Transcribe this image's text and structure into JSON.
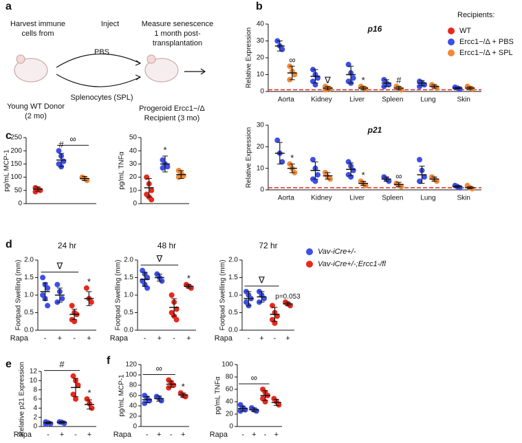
{
  "panels": {
    "a": "a",
    "b": "b",
    "c": "c",
    "d": "d",
    "e": "e",
    "f": "f"
  },
  "diagram": {
    "harvest": [
      "Harvest immune",
      "cells from"
    ],
    "inject": "Inject",
    "measure": [
      "Measure senescence",
      "1 month post-",
      "transplantation"
    ],
    "pbs": "PBS",
    "spl": "Splenocytes (SPL)",
    "donor": [
      "Young WT Donor",
      "(2 mo)"
    ],
    "recipient": [
      "Progeroid Ercc1−/Δ",
      "Recipient (3 mo)"
    ]
  },
  "legends": {
    "b": {
      "title": "Recipients:",
      "items": [
        {
          "name": "WT",
          "color": "#e8291c"
        },
        {
          "name": "Ercc1−/Δ + PBS",
          "color": "#3d4fe6"
        },
        {
          "name": "Ercc1−/Δ + SPL",
          "color": "#f08a3a"
        }
      ]
    },
    "d": {
      "items": [
        {
          "name": "Vav-iCre+/-",
          "color": "#3d4fe6"
        },
        {
          "name": "Vav-iCre+/-;Ercc1-/fl",
          "color": "#e8291c"
        }
      ]
    }
  },
  "chart_data": [
    {
      "type": "dot",
      "title": "p16",
      "ylabel": "Relative Expression",
      "ylim": [
        0,
        40
      ],
      "yticks": [
        0,
        10,
        20,
        30,
        40
      ],
      "reference": 1,
      "reference_color": "#e8291c",
      "categories": [
        "Aorta",
        "Kidney",
        "Liver",
        "Spleen",
        "Lung",
        "Skin"
      ],
      "groups": [
        {
          "color": "#3d4fe6",
          "points": [
            30,
            27,
            25
          ],
          "mean": 27,
          "sd": 3
        },
        {
          "color": "#f08a3a",
          "points": [
            15,
            12,
            10,
            7
          ],
          "mean": 11,
          "sd": 4,
          "annotation": "∞"
        },
        {
          "color": "#3d4fe6",
          "points": [
            13,
            10,
            8,
            6,
            4
          ],
          "mean": 9,
          "sd": 4
        },
        {
          "color": "#f08a3a",
          "points": [
            3,
            2,
            1.5,
            1
          ],
          "mean": 2,
          "sd": 1,
          "annotation": "∇"
        },
        {
          "color": "#3d4fe6",
          "points": [
            16,
            11,
            8,
            6,
            5
          ],
          "mean": 10,
          "sd": 5
        },
        {
          "color": "#f08a3a",
          "points": [
            3,
            2,
            1.5
          ],
          "mean": 2,
          "sd": 1,
          "annotation": "*"
        },
        {
          "color": "#3d4fe6",
          "points": [
            7,
            5,
            4,
            3
          ],
          "mean": 5,
          "sd": 2
        },
        {
          "color": "#f08a3a",
          "points": [
            3,
            2,
            1
          ],
          "mean": 2,
          "sd": 1,
          "annotation": "#"
        },
        {
          "color": "#3d4fe6",
          "points": [
            6,
            5,
            4,
            3
          ],
          "mean": 5,
          "sd": 1.5
        },
        {
          "color": "#f08a3a",
          "points": [
            4,
            3,
            2
          ],
          "mean": 3,
          "sd": 1
        },
        {
          "color": "#3d4fe6",
          "points": [
            2.5,
            2,
            1.5
          ],
          "mean": 2,
          "sd": 0.5
        },
        {
          "color": "#f08a3a",
          "points": [
            3,
            2,
            1.5
          ],
          "mean": 2,
          "sd": 0.8
        }
      ]
    },
    {
      "type": "dot",
      "title": "p21",
      "ylabel": "Relative Expression",
      "ylim": [
        0,
        30
      ],
      "yticks": [
        0,
        10,
        20,
        30
      ],
      "reference": 1,
      "reference_color": "#e8291c",
      "categories": [
        "Aorta",
        "Kidney",
        "Liver",
        "Spleen",
        "Lung",
        "Skin"
      ],
      "groups": [
        {
          "color": "#3d4fe6",
          "points": [
            23,
            17,
            13
          ],
          "mean": 17,
          "sd": 5
        },
        {
          "color": "#f08a3a",
          "points": [
            12,
            10,
            8
          ],
          "mean": 10,
          "sd": 2,
          "annotation": "*"
        },
        {
          "color": "#3d4fe6",
          "points": [
            14,
            10,
            7,
            5,
            4
          ],
          "mean": 9,
          "sd": 4
        },
        {
          "color": "#f08a3a",
          "points": [
            8,
            6,
            5
          ],
          "mean": 6.5,
          "sd": 1.5
        },
        {
          "color": "#3d4fe6",
          "points": [
            13,
            11,
            9,
            7,
            6
          ],
          "mean": 9.5,
          "sd": 3
        },
        {
          "color": "#f08a3a",
          "points": [
            4,
            3,
            2
          ],
          "mean": 3,
          "sd": 1,
          "annotation": "*"
        },
        {
          "color": "#3d4fe6",
          "points": [
            6,
            5,
            4
          ],
          "mean": 5,
          "sd": 1
        },
        {
          "color": "#f08a3a",
          "points": [
            3,
            2,
            1.5
          ],
          "mean": 2.5,
          "sd": 1,
          "annotation": "∞"
        },
        {
          "color": "#3d4fe6",
          "points": [
            14,
            9,
            6,
            4
          ],
          "mean": 7,
          "sd": 4
        },
        {
          "color": "#f08a3a",
          "points": [
            6,
            5,
            4
          ],
          "mean": 5,
          "sd": 1
        },
        {
          "color": "#3d4fe6",
          "points": [
            2,
            1.5,
            1
          ],
          "mean": 1.5,
          "sd": 0.5
        },
        {
          "color": "#f08a3a",
          "points": [
            2,
            1,
            0.5
          ],
          "mean": 1,
          "sd": 0.5
        }
      ]
    },
    {
      "type": "dot",
      "ylabel": "pg/mL MCP-1",
      "ylim": [
        0,
        250
      ],
      "yticks": [
        0,
        50,
        100,
        150,
        200,
        250
      ],
      "groups": [
        {
          "color": "#e8291c",
          "points": [
            60,
            55,
            50,
            45
          ],
          "mean": 55,
          "sd": 8
        },
        {
          "color": "#3d4fe6",
          "points": [
            200,
            180,
            160,
            150,
            140
          ],
          "mean": 165,
          "sd": 25,
          "annotation": "#"
        },
        {
          "color": "#f08a3a",
          "points": [
            100,
            95,
            88
          ],
          "mean": 95,
          "sd": 8
        }
      ],
      "brackets": [
        {
          "text": "∞",
          "groups": [
            1,
            2
          ]
        }
      ]
    },
    {
      "type": "dot",
      "ylabel": "pg/mL TNFα",
      "ylim": [
        0,
        50
      ],
      "yticks": [
        0,
        10,
        20,
        30,
        40,
        50
      ],
      "groups": [
        {
          "color": "#e8291c",
          "points": [
            20,
            15,
            10,
            7,
            5,
            3
          ],
          "mean": 12,
          "sd": 7
        },
        {
          "color": "#3d4fe6",
          "points": [
            33,
            30,
            28,
            27
          ],
          "mean": 30,
          "sd": 6,
          "annotation": "*"
        },
        {
          "color": "#f08a3a",
          "points": [
            25,
            23,
            21,
            20
          ],
          "mean": 22,
          "sd": 3
        }
      ]
    },
    {
      "type": "dot",
      "title": "24 hr",
      "ylabel": "Footpad Swelling (mm)",
      "ylim": [
        0,
        2
      ],
      "yticks": [
        {
          "value": 0,
          "label": "0.0"
        },
        {
          "value": 0.5,
          "label": "0.5"
        },
        {
          "value": 1,
          "label": "1.0"
        },
        {
          "value": 1.5,
          "label": "1.5"
        },
        {
          "value": 2,
          "label": "2.0"
        }
      ],
      "x_label": "Rapa",
      "groups": [
        {
          "color": "#3d4fe6",
          "label": "-",
          "points": [
            1.5,
            1.3,
            1.2,
            1.0,
            0.9,
            0.7
          ],
          "mean": 1.1,
          "sd": 0.25
        },
        {
          "color": "#3d4fe6",
          "label": "+",
          "points": [
            1.3,
            1.1,
            0.9,
            0.8
          ],
          "mean": 1.0,
          "sd": 0.2
        },
        {
          "color": "#e8291c",
          "label": "-",
          "points": [
            0.7,
            0.5,
            0.45,
            0.3,
            0.25
          ],
          "mean": 0.45,
          "sd": 0.15
        },
        {
          "color": "#e8291c",
          "label": "+",
          "points": [
            1.2,
            0.9,
            0.8
          ],
          "mean": 0.9,
          "sd": 0.2,
          "annotation": "*"
        }
      ],
      "brackets": [
        {
          "text": "∇",
          "groups": [
            0,
            2
          ]
        }
      ]
    },
    {
      "type": "dot",
      "title": "48 hr",
      "ylabel": "Footpad Swelling (mm)",
      "ylim": [
        0,
        2
      ],
      "yticks": [
        {
          "value": 0,
          "label": "0.0"
        },
        {
          "value": 0.5,
          "label": "0.5"
        },
        {
          "value": 1,
          "label": "1.0"
        },
        {
          "value": 1.5,
          "label": "1.5"
        },
        {
          "value": 2,
          "label": "2.0"
        }
      ],
      "x_label": "Rapa",
      "groups": [
        {
          "color": "#3d4fe6",
          "label": "-",
          "points": [
            1.7,
            1.6,
            1.5,
            1.4,
            1.3,
            1.2
          ],
          "mean": 1.45,
          "sd": 0.2
        },
        {
          "color": "#3d4fe6",
          "label": "+",
          "points": [
            1.6,
            1.5,
            1.4
          ],
          "mean": 1.5,
          "sd": 0.1
        },
        {
          "color": "#e8291c",
          "label": "-",
          "points": [
            1.0,
            0.8,
            0.6,
            0.5,
            0.4,
            0.3
          ],
          "mean": 0.65,
          "sd": 0.25
        },
        {
          "color": "#e8291c",
          "label": "+",
          "points": [
            1.3,
            1.25,
            1.2
          ],
          "mean": 1.25,
          "sd": 0.05,
          "annotation": "*"
        }
      ],
      "brackets": [
        {
          "text": "∇",
          "groups": [
            0,
            2
          ]
        }
      ]
    },
    {
      "type": "dot",
      "title": "72 hr",
      "ylabel": "Footpad Swelling (mm)",
      "ylim": [
        0,
        2
      ],
      "yticks": [
        {
          "value": 0,
          "label": "0.0"
        },
        {
          "value": 0.5,
          "label": "0.5"
        },
        {
          "value": 1,
          "label": "1.0"
        },
        {
          "value": 1.5,
          "label": "1.5"
        },
        {
          "value": 2,
          "label": "2.0"
        }
      ],
      "x_label": "Rapa",
      "groups": [
        {
          "color": "#3d4fe6",
          "label": "-",
          "points": [
            1.1,
            1.0,
            0.9,
            0.8,
            0.7
          ],
          "mean": 0.9,
          "sd": 0.2
        },
        {
          "color": "#3d4fe6",
          "label": "+",
          "points": [
            1.1,
            1.0,
            0.9,
            0.8
          ],
          "mean": 0.95,
          "sd": 0.15
        },
        {
          "color": "#e8291c",
          "label": "-",
          "points": [
            0.7,
            0.5,
            0.4,
            0.3,
            0.2
          ],
          "mean": 0.45,
          "sd": 0.2
        },
        {
          "color": "#e8291c",
          "label": "+",
          "points": [
            0.8,
            0.75,
            0.7
          ],
          "mean": 0.75,
          "sd": 0.05,
          "annotation": "p=0.053"
        }
      ],
      "brackets": [
        {
          "text": "∇",
          "groups": [
            0,
            2
          ]
        }
      ]
    },
    {
      "type": "dot",
      "ylabel": "Relative p21 Expression",
      "ylim": [
        0,
        12
      ],
      "yticks": [
        0,
        2,
        4,
        6,
        8,
        10,
        12
      ],
      "x_label": "Rapa",
      "groups": [
        {
          "color": "#3d4fe6",
          "label": "-",
          "points": [
            1,
            0.8,
            0.6,
            0.5
          ],
          "mean": 0.8,
          "sd": 0.2
        },
        {
          "color": "#3d4fe6",
          "label": "+",
          "points": [
            1,
            0.9,
            0.7
          ],
          "mean": 0.9,
          "sd": 0.2
        },
        {
          "color": "#e8291c",
          "label": "-",
          "points": [
            11,
            10,
            9,
            7,
            6
          ],
          "mean": 8.5,
          "sd": 2
        },
        {
          "color": "#e8291c",
          "label": "+",
          "points": [
            6,
            5,
            4
          ],
          "mean": 4.8,
          "sd": 1,
          "annotation": "*"
        }
      ],
      "brackets": [
        {
          "text": "#",
          "groups": [
            0,
            2
          ]
        }
      ]
    },
    {
      "type": "dot",
      "ylabel": "pg/mL MCP-1",
      "ylim": [
        0,
        120
      ],
      "yticks": [
        0,
        20,
        40,
        60,
        80,
        100,
        120
      ],
      "x_label": "Rapa",
      "groups": [
        {
          "color": "#3d4fe6",
          "label": "-",
          "points": [
            60,
            55,
            50,
            45
          ],
          "mean": 52,
          "sd": 6
        },
        {
          "color": "#3d4fe6",
          "label": "+",
          "points": [
            58,
            55,
            50
          ],
          "mean": 54,
          "sd": 5
        },
        {
          "color": "#e8291c",
          "label": "-",
          "points": [
            90,
            85,
            80,
            75
          ],
          "mean": 82,
          "sd": 6
        },
        {
          "color": "#e8291c",
          "label": "+",
          "points": [
            65,
            60,
            58
          ],
          "mean": 61,
          "sd": 4,
          "annotation": "*"
        }
      ],
      "brackets": [
        {
          "text": "∞",
          "groups": [
            0,
            2
          ]
        }
      ]
    },
    {
      "type": "dot",
      "ylabel": "pg/mL TNFα",
      "ylim": [
        0,
        100
      ],
      "yticks": [
        0,
        20,
        40,
        60,
        80,
        100
      ],
      "x_label": "Rapa",
      "groups": [
        {
          "color": "#3d4fe6",
          "label": "-",
          "points": [
            35,
            30,
            27,
            25
          ],
          "mean": 29,
          "sd": 4
        },
        {
          "color": "#3d4fe6",
          "label": "+",
          "points": [
            30,
            27,
            25
          ],
          "mean": 27,
          "sd": 3
        },
        {
          "color": "#e8291c",
          "label": "-",
          "points": [
            60,
            55,
            50,
            45,
            40
          ],
          "mean": 50,
          "sd": 8
        },
        {
          "color": "#e8291c",
          "label": "+",
          "points": [
            45,
            40,
            35
          ],
          "mean": 39,
          "sd": 5
        }
      ],
      "brackets": [
        {
          "text": "∞",
          "groups": [
            0,
            2
          ]
        }
      ]
    }
  ]
}
